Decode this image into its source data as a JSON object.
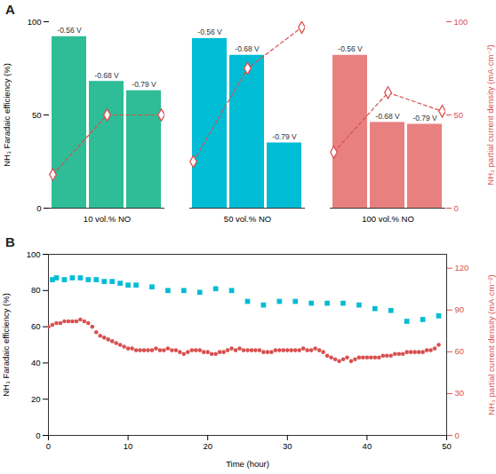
{
  "chart_data": [
    {
      "type": "bar",
      "title": "A",
      "categories": [
        "10 vol.% NO",
        "50 vol.% NO",
        "100 vol.% NO"
      ],
      "ylabel": "NH₃ Faradaic efficiency (%)",
      "y2label": "NH₃ partial current density (mA·cm⁻²)",
      "ylim": [
        0,
        100
      ],
      "yticks": [
        0,
        50,
        100
      ],
      "y2lim": [
        0,
        100
      ],
      "y2ticks": [
        0,
        50,
        100
      ],
      "series": [
        {
          "name": "-0.56 V",
          "type": "bar",
          "colors": [
            "#2ebd96",
            "#00bcd4",
            "#e88080"
          ],
          "values": [
            92,
            91,
            82
          ]
        },
        {
          "name": "-0.68 V",
          "type": "bar",
          "colors": [
            "#2ebd96",
            "#00bcd4",
            "#e88080"
          ],
          "values": [
            68,
            82,
            46
          ]
        },
        {
          "name": "-0.79 V",
          "type": "bar",
          "colors": [
            "#2ebd96",
            "#00bcd4",
            "#e88080"
          ],
          "values": [
            63,
            35,
            45
          ]
        },
        {
          "type": "line",
          "axis": "y2",
          "color": "#d95050",
          "marker": "diamond",
          "line_style": "dashed",
          "values": [
            18,
            25,
            30
          ]
        },
        {
          "type": "line",
          "axis": "y2",
          "color": "#d95050",
          "marker": "diamond",
          "line_style": "dashed",
          "values": [
            50,
            75,
            62
          ]
        },
        {
          "type": "line",
          "axis": "y2",
          "color": "#d95050",
          "marker": "diamond",
          "line_style": "dashed",
          "values": [
            50,
            97,
            52
          ]
        }
      ]
    },
    {
      "type": "scatter",
      "title": "B",
      "xlabel": "Time (hour)",
      "ylabel": "NH₃ Faradaic efficiency (%)",
      "y2label": "NH₃ partial current density (mA·cm⁻²)",
      "xlim": [
        0,
        50
      ],
      "xticks": [
        0,
        10,
        20,
        30,
        40,
        50
      ],
      "ylim": [
        0,
        100
      ],
      "yticks": [
        0,
        20,
        40,
        60,
        80,
        100
      ],
      "y2lim": [
        0,
        130
      ],
      "y2ticks": [
        0,
        30,
        60,
        90,
        120
      ],
      "series": [
        {
          "color": "#00bcd4",
          "marker": "square",
          "x": [
            0.5,
            1,
            2,
            3,
            4,
            5,
            6,
            7,
            8,
            9,
            10,
            11,
            13,
            15,
            17,
            19,
            21,
            23,
            25,
            27,
            29,
            31,
            33,
            35,
            37,
            39,
            41,
            43,
            45,
            47,
            49
          ],
          "values": [
            86,
            87,
            86,
            87,
            87,
            86,
            86,
            85,
            85,
            84,
            83,
            83,
            82,
            80,
            80,
            79,
            81,
            80,
            74,
            72,
            74,
            74,
            73,
            73,
            73,
            72,
            70,
            69,
            63,
            64,
            66
          ]
        },
        {
          "color": "#d95050",
          "marker": "circle",
          "axis": "y2",
          "x": [
            0,
            0.5,
            1.0,
            1.5,
            2.0,
            2.5,
            3.0,
            3.5,
            4.0,
            4.5,
            5.0,
            5.5,
            6.0,
            6.5,
            7.0,
            7.5,
            8.0,
            8.5,
            9.0,
            9.5,
            10.0,
            10.5,
            11.0,
            11.5,
            12.0,
            12.5,
            13.0,
            13.5,
            14.0,
            14.5,
            15.0,
            15.5,
            16.0,
            16.5,
            17.0,
            17.5,
            18.0,
            18.5,
            19.0,
            19.5,
            20.0,
            20.5,
            21.0,
            21.5,
            22.0,
            22.5,
            23.0,
            23.5,
            24.0,
            24.5,
            25.0,
            25.5,
            26.0,
            26.5,
            27.0,
            27.5,
            28.0,
            28.5,
            29.0,
            29.5,
            30.0,
            30.5,
            31.0,
            31.5,
            32.0,
            32.5,
            33.0,
            33.5,
            34.0,
            34.5,
            35.0,
            35.5,
            36.0,
            36.5,
            37.0,
            37.5,
            38.0,
            38.5,
            39.0,
            39.5,
            40.0,
            40.5,
            41.0,
            41.5,
            42.0,
            42.5,
            43.0,
            43.5,
            44.0,
            44.5,
            45.0,
            45.5,
            46.0,
            46.5,
            47.0,
            47.5,
            48.0,
            48.5,
            49.0
          ],
          "values": [
            78,
            79.3,
            80.6,
            80.6,
            81.9,
            81.9,
            81.9,
            81.9,
            83.2,
            81.9,
            80.6,
            78,
            74.1,
            71.5,
            70.2,
            68.9,
            67.6,
            66.3,
            65,
            63.7,
            62.4,
            62.4,
            61.1,
            61.1,
            61.1,
            61.1,
            61.1,
            62.4,
            61.1,
            61.1,
            62.4,
            61.1,
            61.1,
            59.8,
            58.5,
            59.8,
            61.1,
            61.1,
            61.1,
            59.8,
            59.8,
            58.5,
            58.5,
            59.8,
            59.8,
            61.1,
            62.4,
            61.1,
            62.4,
            61.1,
            61.1,
            61.1,
            61.1,
            61.1,
            59.8,
            59.8,
            59.8,
            61.1,
            61.1,
            61.1,
            61.1,
            61.1,
            61.1,
            61.1,
            62.4,
            61.1,
            61.1,
            62.4,
            61.1,
            59.8,
            57.2,
            55.9,
            54.6,
            53.3,
            54.6,
            55.9,
            53.3,
            54.6,
            55.9,
            55.9,
            55.9,
            55.9,
            55.9,
            55.9,
            57.2,
            57.2,
            57.2,
            58.5,
            58.5,
            58.5,
            59.8,
            59.8,
            59.8,
            59.8,
            59.8,
            61.1,
            61.1,
            62.4,
            65
          ]
        }
      ]
    }
  ]
}
